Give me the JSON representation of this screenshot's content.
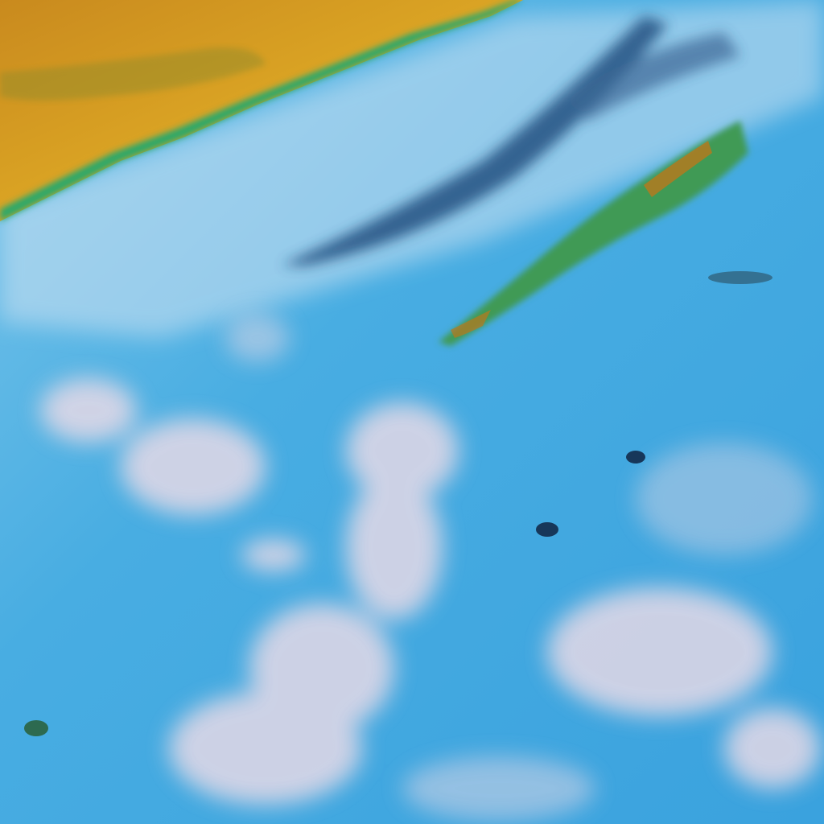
{
  "image": {
    "kind": "satellite false-color scene",
    "colors": {
      "ocean": "#3aa6e0",
      "ocean_light": "#6cc0ea",
      "land": "#d9a021",
      "land_dark": "#b9781c",
      "coast_green": "#2aa86a",
      "island_green": "#3f9a55",
      "cloud": "#e6d9e6",
      "cloud_shadow": "#1f4a7a"
    }
  }
}
